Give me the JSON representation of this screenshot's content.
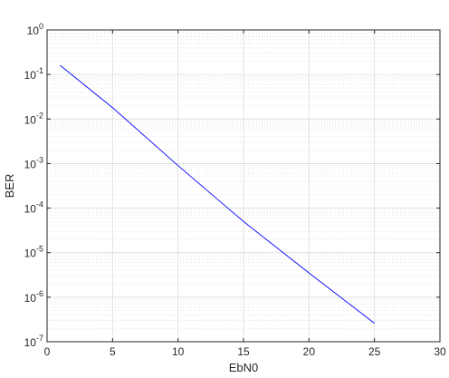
{
  "chart_data": {
    "type": "line",
    "title": "",
    "xlabel": "EbN0",
    "ylabel": "BER",
    "xlim": [
      0,
      30
    ],
    "ylim": [
      1e-07,
      1
    ],
    "yscale": "log",
    "grid": true,
    "minor_grid": true,
    "x_ticks": [
      {
        "value": 0,
        "label": "0"
      },
      {
        "value": 5,
        "label": "5"
      },
      {
        "value": 10,
        "label": "10"
      },
      {
        "value": 15,
        "label": "15"
      },
      {
        "value": 20,
        "label": "20"
      },
      {
        "value": 25,
        "label": "25"
      },
      {
        "value": 30,
        "label": "30"
      }
    ],
    "y_ticks": [
      {
        "value": 1,
        "base": "10",
        "exp": "0"
      },
      {
        "value": 0.1,
        "base": "10",
        "exp": "-1"
      },
      {
        "value": 0.01,
        "base": "10",
        "exp": "-2"
      },
      {
        "value": 0.001,
        "base": "10",
        "exp": "-3"
      },
      {
        "value": 0.0001,
        "base": "10",
        "exp": "-4"
      },
      {
        "value": 1e-05,
        "base": "10",
        "exp": "-5"
      },
      {
        "value": 1e-06,
        "base": "10",
        "exp": "-6"
      },
      {
        "value": 1e-07,
        "base": "10",
        "exp": "-7"
      }
    ],
    "series": [
      {
        "color": "#0000ff",
        "x": [
          1,
          5,
          10,
          15,
          20,
          25
        ],
        "y": [
          0.16,
          0.018,
          0.0009,
          5e-05,
          3.5e-06,
          2.6e-07
        ]
      }
    ]
  }
}
